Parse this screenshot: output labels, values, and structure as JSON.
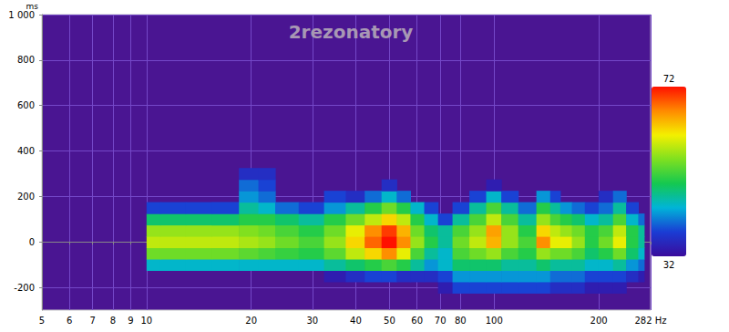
{
  "chart_data": {
    "type": "spectrogram",
    "title": "2rezonatory",
    "ylabel": "ms",
    "log": "x",
    "grid": true,
    "x": [
      10,
      12,
      14,
      17,
      20,
      22,
      25,
      30,
      35,
      40,
      45,
      50,
      55,
      60,
      66,
      72,
      80,
      90,
      100,
      110,
      125,
      140,
      150,
      160,
      175,
      190,
      210,
      230,
      250,
      270
    ],
    "y": [
      -250,
      -200,
      -150,
      -100,
      -50,
      0,
      50,
      100,
      150,
      200,
      250,
      300,
      350
    ],
    "z": [
      [
        null,
        null,
        null,
        null,
        null,
        null,
        null,
        null,
        null,
        null,
        null,
        null,
        null,
        null,
        null,
        null,
        null,
        null,
        null,
        null,
        null,
        null,
        null,
        null,
        null,
        null,
        null,
        null,
        null,
        null
      ],
      [
        null,
        null,
        null,
        null,
        null,
        null,
        null,
        null,
        null,
        null,
        null,
        null,
        null,
        null,
        null,
        34,
        38,
        38,
        38,
        38,
        38,
        38,
        36,
        36,
        36,
        34,
        34,
        34,
        null,
        null
      ],
      [
        null,
        null,
        null,
        null,
        null,
        null,
        null,
        null,
        34,
        36,
        38,
        38,
        36,
        36,
        36,
        38,
        42,
        42,
        42,
        42,
        42,
        42,
        40,
        40,
        40,
        38,
        38,
        38,
        36,
        34
      ],
      [
        44,
        44,
        44,
        44,
        44,
        44,
        44,
        44,
        46,
        48,
        50,
        52,
        50,
        46,
        42,
        44,
        48,
        48,
        48,
        46,
        46,
        48,
        46,
        46,
        46,
        44,
        44,
        46,
        42,
        40
      ],
      [
        54,
        54,
        54,
        54,
        53,
        52,
        51,
        50,
        53,
        58,
        62,
        66,
        60,
        52,
        46,
        44,
        52,
        54,
        56,
        52,
        50,
        56,
        54,
        54,
        52,
        48,
        50,
        54,
        48,
        44
      ],
      [
        58,
        58,
        58,
        58,
        57,
        56,
        54,
        52,
        56,
        62,
        68,
        72,
        66,
        56,
        50,
        46,
        54,
        58,
        64,
        56,
        52,
        66,
        60,
        60,
        56,
        50,
        54,
        60,
        50,
        46
      ],
      [
        56,
        56,
        56,
        56,
        55,
        54,
        52,
        50,
        54,
        60,
        66,
        70,
        64,
        54,
        48,
        46,
        52,
        56,
        65,
        56,
        50,
        62,
        58,
        56,
        54,
        50,
        52,
        58,
        50,
        46
      ],
      [
        48,
        48,
        48,
        48,
        50,
        50,
        48,
        46,
        50,
        54,
        58,
        62,
        58,
        50,
        44,
        38,
        46,
        52,
        58,
        52,
        46,
        56,
        52,
        50,
        48,
        44,
        46,
        52,
        44,
        40
      ],
      [
        38,
        38,
        38,
        38,
        46,
        44,
        40,
        38,
        42,
        46,
        50,
        54,
        50,
        44,
        38,
        null,
        38,
        46,
        52,
        46,
        40,
        50,
        46,
        42,
        40,
        38,
        40,
        46,
        38,
        null
      ],
      [
        null,
        null,
        null,
        null,
        42,
        40,
        null,
        null,
        38,
        36,
        40,
        44,
        40,
        null,
        null,
        null,
        null,
        38,
        44,
        38,
        null,
        42,
        38,
        null,
        null,
        null,
        36,
        40,
        null,
        null
      ],
      [
        null,
        null,
        null,
        null,
        40,
        38,
        null,
        null,
        null,
        null,
        null,
        36,
        null,
        null,
        null,
        null,
        null,
        null,
        34,
        null,
        null,
        null,
        null,
        null,
        null,
        null,
        null,
        null,
        null,
        null
      ],
      [
        null,
        null,
        null,
        null,
        36,
        36,
        null,
        null,
        null,
        null,
        null,
        null,
        null,
        null,
        null,
        null,
        null,
        null,
        null,
        null,
        null,
        null,
        null,
        null,
        null,
        null,
        null,
        null,
        null,
        null
      ],
      [
        null,
        null,
        null,
        null,
        null,
        null,
        null,
        null,
        null,
        null,
        null,
        null,
        null,
        null,
        null,
        null,
        null,
        null,
        null,
        null,
        null,
        null,
        null,
        null,
        null,
        null,
        null,
        null,
        null,
        null
      ]
    ],
    "xlim": [
      5,
      282
    ],
    "xticks": [
      5,
      6,
      7,
      8,
      9,
      10,
      20,
      30,
      40,
      50,
      60,
      70,
      80,
      100,
      200,
      {
        "value": 282,
        "label": "282 Hz"
      }
    ],
    "ylim": [
      -300,
      1000
    ],
    "yticks": [
      -200,
      0,
      200,
      400,
      600,
      800,
      {
        "value": 1000,
        "label": "1 000"
      }
    ],
    "zlim": [
      32,
      72
    ],
    "zticks": [
      32,
      72
    ]
  }
}
